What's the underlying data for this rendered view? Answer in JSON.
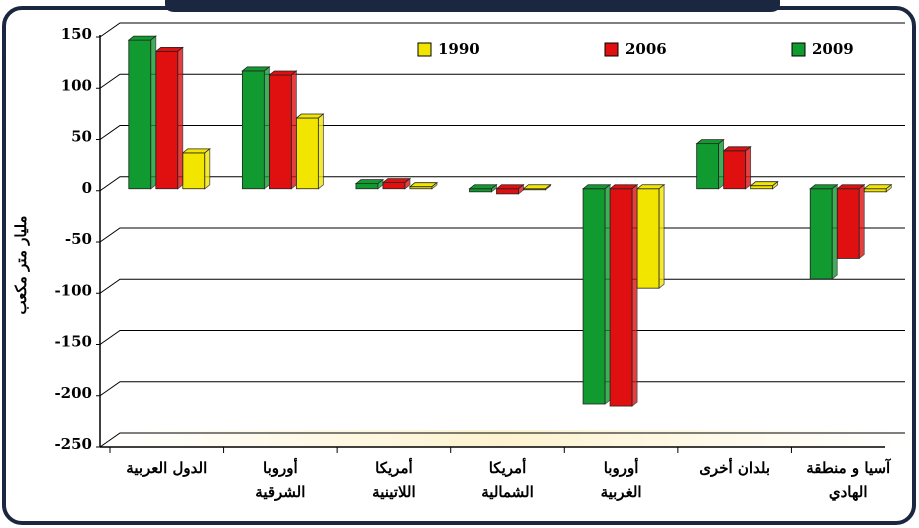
{
  "chart_data": {
    "type": "bar",
    "ylabel": "مليار متر مكعب",
    "categories": [
      "الدول العربية",
      "أوروبا\nالشرقية",
      "أمريكا\nاللاتينية",
      "أمريكا\nالشمالية",
      "أوروبا\nالغربية",
      "بلدان أخرى",
      "آسيا و منطقة\nالهادي"
    ],
    "series": [
      {
        "name": "1990",
        "color": "#f2e600",
        "values": [
          35,
          69,
          2,
          -1,
          -97,
          3,
          -3
        ]
      },
      {
        "name": "2006",
        "color": "#e01010",
        "values": [
          134,
          111,
          6,
          -5,
          -212,
          37,
          -68
        ]
      },
      {
        "name": "2009",
        "color": "#109a30",
        "values": [
          145,
          115,
          5,
          -3,
          -210,
          44,
          -88
        ]
      }
    ],
    "ylim": [
      -250,
      150
    ],
    "yticks": [
      -250,
      -200,
      -150,
      -100,
      -50,
      0,
      50,
      100,
      150
    ],
    "grid": true
  }
}
